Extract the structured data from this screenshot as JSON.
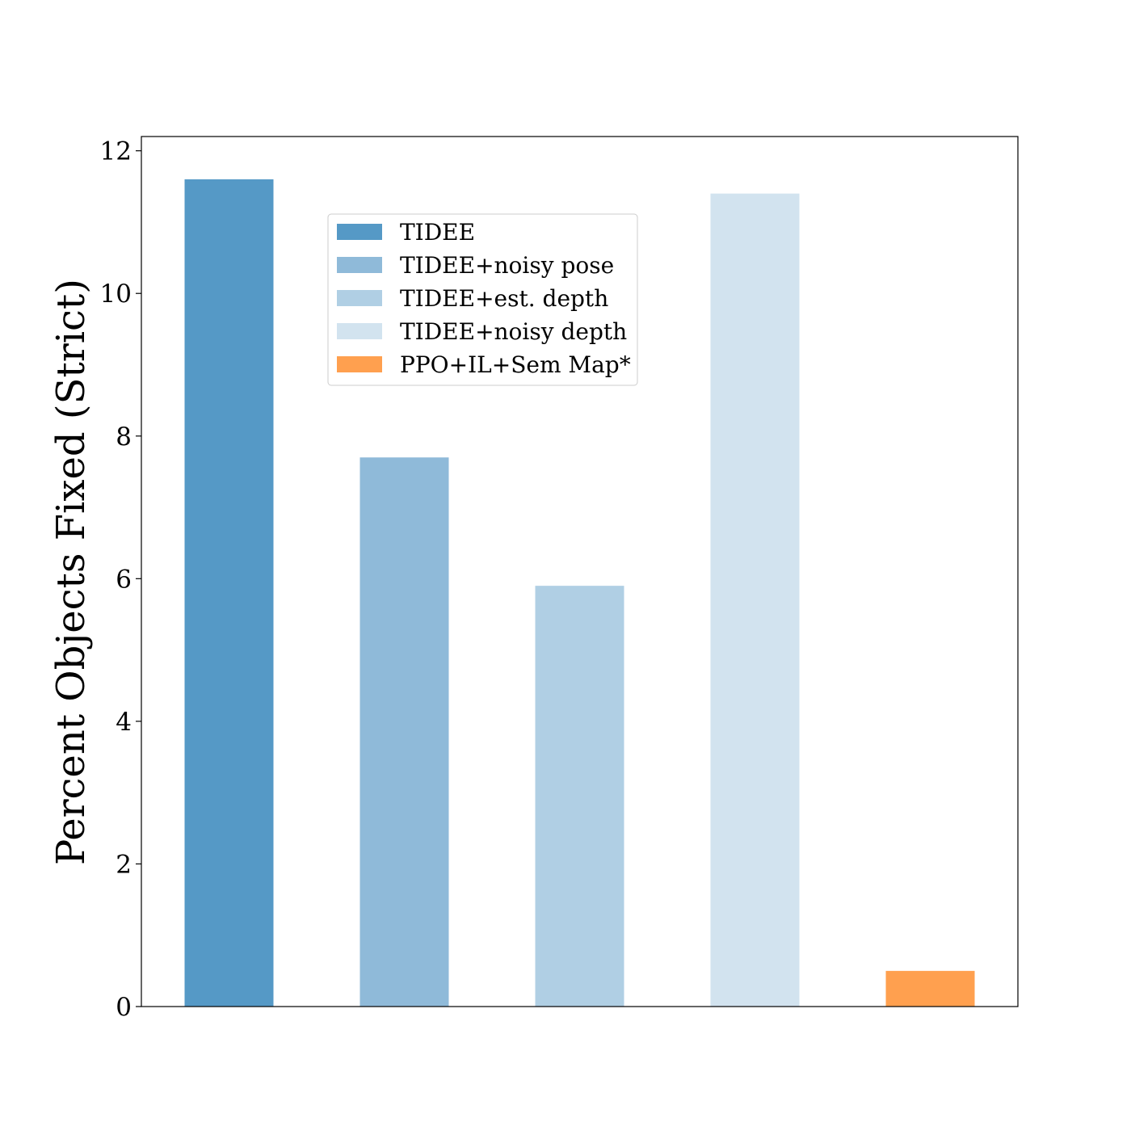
{
  "chart_data": {
    "type": "bar",
    "title": "",
    "xlabel": "",
    "ylabel": "Percent Objects Fixed (Strict)",
    "ylim": [
      0,
      12.2
    ],
    "yticks": [
      0,
      2,
      4,
      6,
      8,
      10,
      12
    ],
    "grid": false,
    "legend_position": "upper-center",
    "series": [
      {
        "name": "TIDEE",
        "value": 11.6,
        "color": "#5599c6"
      },
      {
        "name": "TIDEE+noisy pose",
        "value": 7.7,
        "color": "#8fbad9"
      },
      {
        "name": "TIDEE+est. depth",
        "value": 5.9,
        "color": "#b0cfe4"
      },
      {
        "name": "TIDEE+noisy depth",
        "value": 11.4,
        "color": "#d2e3ef"
      },
      {
        "name": "PPO+IL+Sem Map*",
        "value": 0.5,
        "color": "#ffa04f"
      }
    ]
  }
}
